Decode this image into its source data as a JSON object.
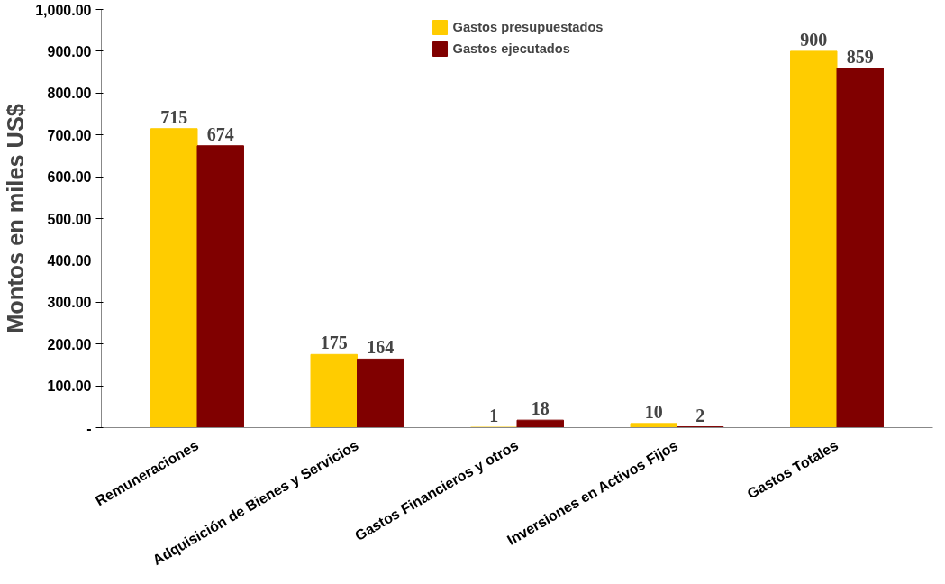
{
  "chart_data": {
    "type": "bar",
    "ylabel": "Montos en miles US$",
    "categories": [
      "Remuneraciones",
      "Adquisición de Bienes y Servicios",
      "Gastos Financieros y otros",
      "Inversiones en Activos Fijos",
      "Gastos Totales"
    ],
    "series": [
      {
        "name": "Gastos presupuestados",
        "color": "#ffcc00",
        "values": [
          715,
          175,
          1,
          10,
          900
        ]
      },
      {
        "name": "Gastos ejecutados",
        "color": "#800000",
        "values": [
          674,
          164,
          18,
          2,
          859
        ]
      }
    ],
    "ylim": [
      0,
      1000
    ],
    "yticks": [
      {
        "value": 0,
        "label": "-"
      },
      {
        "value": 100,
        "label": "100.00"
      },
      {
        "value": 200,
        "label": "200.00"
      },
      {
        "value": 300,
        "label": "300.00"
      },
      {
        "value": 400,
        "label": "400.00"
      },
      {
        "value": 500,
        "label": "500.00"
      },
      {
        "value": 600,
        "label": "600.00"
      },
      {
        "value": 700,
        "label": "700.00"
      },
      {
        "value": 800,
        "label": "800.00"
      },
      {
        "value": 900,
        "label": "900.00"
      },
      {
        "value": 1000,
        "label": "1,000.00"
      }
    ],
    "data_labels": true,
    "grid": false,
    "legend": "top"
  }
}
